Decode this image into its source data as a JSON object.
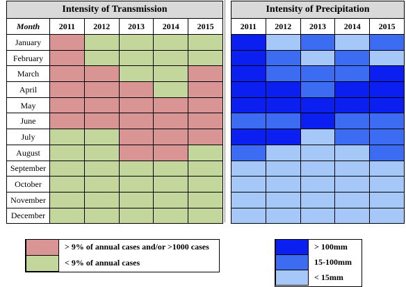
{
  "colors": {
    "trans_high": "#d99594",
    "trans_low": "#c3d69b",
    "prec_high": "#0a1ff0",
    "prec_mid": "#3c6cf2",
    "prec_low": "#a6c8f8"
  },
  "transmission": {
    "title": "Intensity of Transmission",
    "month_header": "Month",
    "years": [
      "2011",
      "2012",
      "2013",
      "2014",
      "2015"
    ],
    "rows": [
      {
        "month": "January",
        "levels": [
          "high",
          "low",
          "low",
          "low",
          "low"
        ]
      },
      {
        "month": "February",
        "levels": [
          "high",
          "low",
          "low",
          "low",
          "low"
        ]
      },
      {
        "month": "March",
        "levels": [
          "high",
          "high",
          "low",
          "low",
          "high"
        ]
      },
      {
        "month": "April",
        "levels": [
          "high",
          "high",
          "high",
          "low",
          "high"
        ]
      },
      {
        "month": "May",
        "levels": [
          "high",
          "high",
          "high",
          "high",
          "high"
        ]
      },
      {
        "month": "June",
        "levels": [
          "high",
          "high",
          "high",
          "high",
          "high"
        ]
      },
      {
        "month": "July",
        "levels": [
          "low",
          "low",
          "high",
          "high",
          "high"
        ]
      },
      {
        "month": "August",
        "levels": [
          "low",
          "low",
          "high",
          "high",
          "low"
        ]
      },
      {
        "month": "September",
        "levels": [
          "low",
          "low",
          "low",
          "low",
          "low"
        ]
      },
      {
        "month": "October",
        "levels": [
          "low",
          "low",
          "low",
          "low",
          "low"
        ]
      },
      {
        "month": "November",
        "levels": [
          "low",
          "low",
          "low",
          "low",
          "low"
        ]
      },
      {
        "month": "December",
        "levels": [
          "low",
          "low",
          "low",
          "low",
          "low"
        ]
      }
    ]
  },
  "precipitation": {
    "title": "Intensity of Precipitation",
    "years": [
      "2011",
      "2012",
      "2013",
      "2014",
      "2015"
    ],
    "rows": [
      [
        "high",
        "low",
        "mid",
        "low",
        "mid"
      ],
      [
        "high",
        "mid",
        "low",
        "mid",
        "low"
      ],
      [
        "high",
        "mid",
        "mid",
        "mid",
        "high"
      ],
      [
        "high",
        "high",
        "mid",
        "high",
        "high"
      ],
      [
        "high",
        "high",
        "high",
        "high",
        "high"
      ],
      [
        "mid",
        "mid",
        "high",
        "mid",
        "mid"
      ],
      [
        "high",
        "high",
        "low",
        "mid",
        "mid"
      ],
      [
        "mid",
        "low",
        "low",
        "low",
        "mid"
      ],
      [
        "low",
        "low",
        "low",
        "low",
        "low"
      ],
      [
        "low",
        "low",
        "low",
        "low",
        "low"
      ],
      [
        "low",
        "low",
        "low",
        "low",
        "low"
      ],
      [
        "low",
        "low",
        "low",
        "low",
        "low"
      ]
    ]
  },
  "legend_transmission": [
    {
      "level": "high",
      "label": "> 9% of annual cases and/or >1000 cases"
    },
    {
      "level": "low",
      "label": "< 9% of annual cases"
    }
  ],
  "legend_precipitation": [
    {
      "level": "high",
      "label": "> 100mm"
    },
    {
      "level": "mid",
      "label": "15-100mm"
    },
    {
      "level": "low",
      "label": "< 15mm"
    }
  ]
}
